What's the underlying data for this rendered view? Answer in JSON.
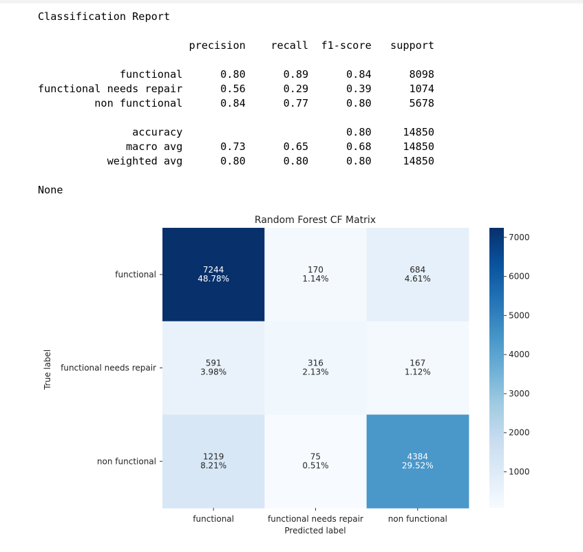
{
  "report": {
    "heading": "Classification Report",
    "columns": [
      "precision",
      "recall",
      "f1-score",
      "support"
    ],
    "rows": [
      {
        "label": "functional",
        "precision": "0.80",
        "recall": "0.89",
        "f1": "0.84",
        "support": "8098"
      },
      {
        "label": "functional needs repair",
        "precision": "0.56",
        "recall": "0.29",
        "f1": "0.39",
        "support": "1074"
      },
      {
        "label": "non functional",
        "precision": "0.84",
        "recall": "0.77",
        "f1": "0.80",
        "support": "5678"
      }
    ],
    "summary": [
      {
        "label": "accuracy",
        "precision": "",
        "recall": "",
        "f1": "0.80",
        "support": "14850"
      },
      {
        "label": "macro avg",
        "precision": "0.73",
        "recall": "0.65",
        "f1": "0.68",
        "support": "14850"
      },
      {
        "label": "weighted avg",
        "precision": "0.80",
        "recall": "0.80",
        "f1": "0.80",
        "support": "14850"
      }
    ]
  },
  "output_none": "None",
  "chart_data": {
    "type": "heatmap",
    "title": "Random Forest CF Matrix",
    "xlabel": "Predicted label",
    "ylabel": "True label",
    "x_categories": [
      "functional",
      "functional needs repair",
      "non functional"
    ],
    "y_categories": [
      "functional",
      "functional needs repair",
      "non functional"
    ],
    "values": [
      [
        7244,
        170,
        684
      ],
      [
        591,
        316,
        167
      ],
      [
        1219,
        75,
        4384
      ]
    ],
    "percent_labels": [
      [
        "48.78%",
        "1.14%",
        "4.61%"
      ],
      [
        "3.98%",
        "2.13%",
        "1.12%"
      ],
      [
        "8.21%",
        "0.51%",
        "29.52%"
      ]
    ],
    "colormap": "Blues",
    "colorbar": {
      "ticks": [
        1000,
        2000,
        3000,
        4000,
        5000,
        6000,
        7000
      ],
      "range": [
        75,
        7244
      ]
    },
    "colors": {
      "low": "#f7fbff",
      "high": "#08306b"
    }
  }
}
